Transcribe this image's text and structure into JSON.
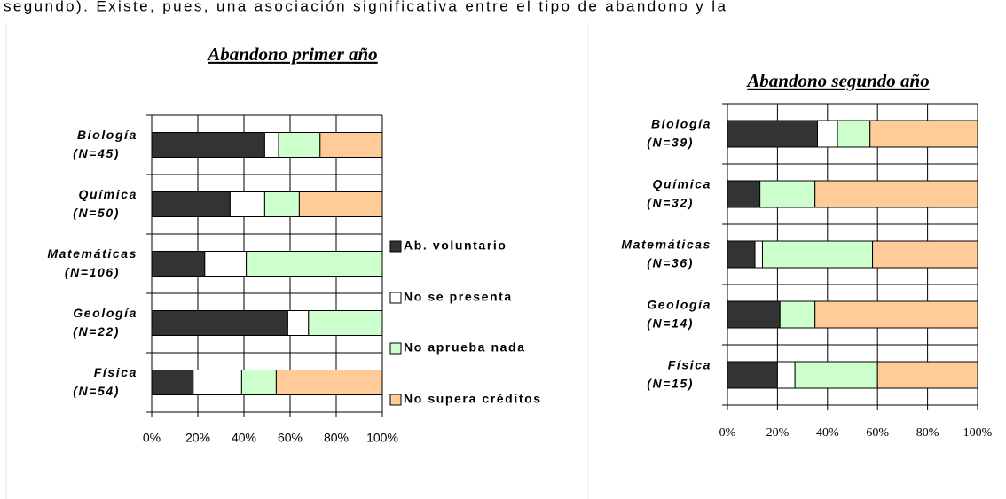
{
  "text": "segundo). Existe, pues, una asociación significativa entre el tipo de abandono y la",
  "chart_data": [
    {
      "type": "bar",
      "orientation": "horizontal",
      "stacked": true,
      "title": "Abandono primer año",
      "categories": [
        "Biología",
        "Química",
        "Matemáticas",
        "Geología",
        "Física"
      ],
      "category_counts": [
        "(N=45)",
        "(N=50)",
        "(N=106)",
        "(N=22)",
        "(N=54)"
      ],
      "series": [
        {
          "name": "Ab. voluntario",
          "color": "#333333",
          "values": [
            49,
            34,
            23,
            59,
            18
          ]
        },
        {
          "name": "No se presenta",
          "color": "#ffffff",
          "values": [
            6,
            15,
            18,
            9,
            21
          ]
        },
        {
          "name": "No aprueba nada",
          "color": "#ccffcc",
          "values": [
            18,
            15,
            59,
            32,
            15
          ]
        },
        {
          "name": "No supera créditos",
          "color": "#ffcc99",
          "values": [
            27,
            36,
            0,
            0,
            46
          ]
        }
      ],
      "xlim": [
        0,
        100
      ],
      "xticks": [
        {
          "value": 0,
          "label": "0%"
        },
        {
          "value": 20,
          "label": "20%"
        },
        {
          "value": 40,
          "label": "40%"
        },
        {
          "value": 60,
          "label": "60%"
        },
        {
          "value": 80,
          "label": "80%"
        },
        {
          "value": 100,
          "label": "100%"
        }
      ],
      "grid": true,
      "legend": "right"
    },
    {
      "type": "bar",
      "orientation": "horizontal",
      "stacked": true,
      "title": "Abandono segundo año",
      "categories": [
        "Biología",
        "Química",
        "Matemáticas",
        "Geología",
        "Física"
      ],
      "category_counts": [
        "(N=39)",
        "(N=32)",
        "(N=36)",
        "(N=14)",
        "(N=15)"
      ],
      "series": [
        {
          "color": "#333333",
          "values": [
            36,
            13,
            11,
            21,
            20
          ]
        },
        {
          "color": "#ffffff",
          "values": [
            8,
            0,
            3,
            0,
            7
          ]
        },
        {
          "color": "#ccffcc",
          "values": [
            13,
            22,
            44,
            14,
            33
          ]
        },
        {
          "color": "#ffcc99",
          "values": [
            43,
            65,
            42,
            65,
            40
          ]
        }
      ],
      "xlim": [
        0,
        100
      ],
      "xticks": [
        {
          "value": 0,
          "label": "0%"
        },
        {
          "value": 20,
          "label": "20%"
        },
        {
          "value": 40,
          "label": "40%"
        },
        {
          "value": 60,
          "label": "60%"
        },
        {
          "value": 80,
          "label": "80%"
        },
        {
          "value": 100,
          "label": "100%"
        }
      ],
      "grid": true
    }
  ]
}
